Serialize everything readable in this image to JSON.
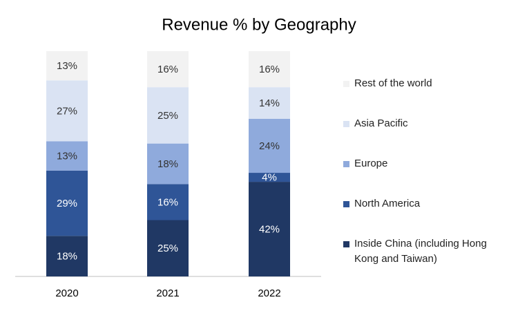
{
  "chart_data": {
    "type": "stacked_bar",
    "title": "Revenue % by Geography",
    "categories": [
      "2020",
      "2021",
      "2022"
    ],
    "series": [
      {
        "name": "Inside China (including Hong Kong and Taiwan)",
        "color": "#203864",
        "values": [
          18,
          25,
          42
        ],
        "value_labels": [
          "18%",
          "25%",
          "42%"
        ]
      },
      {
        "name": "North America",
        "color": "#2f5597",
        "values": [
          29,
          16,
          4
        ],
        "value_labels": [
          "29%",
          "16%",
          "4%"
        ]
      },
      {
        "name": "Europe",
        "color": "#8faadc",
        "values": [
          13,
          18,
          24
        ],
        "value_labels": [
          "13%",
          "18%",
          "24%"
        ]
      },
      {
        "name": "Asia Pacific",
        "color": "#dae3f3",
        "values": [
          27,
          25,
          14
        ],
        "value_labels": [
          "27%",
          "25%",
          "14%"
        ]
      },
      {
        "name": "Rest of the world",
        "color": "#f2f2f2",
        "values": [
          13,
          16,
          16
        ],
        "value_labels": [
          "13%",
          "16%",
          "16%"
        ]
      }
    ],
    "legend": "right"
  }
}
